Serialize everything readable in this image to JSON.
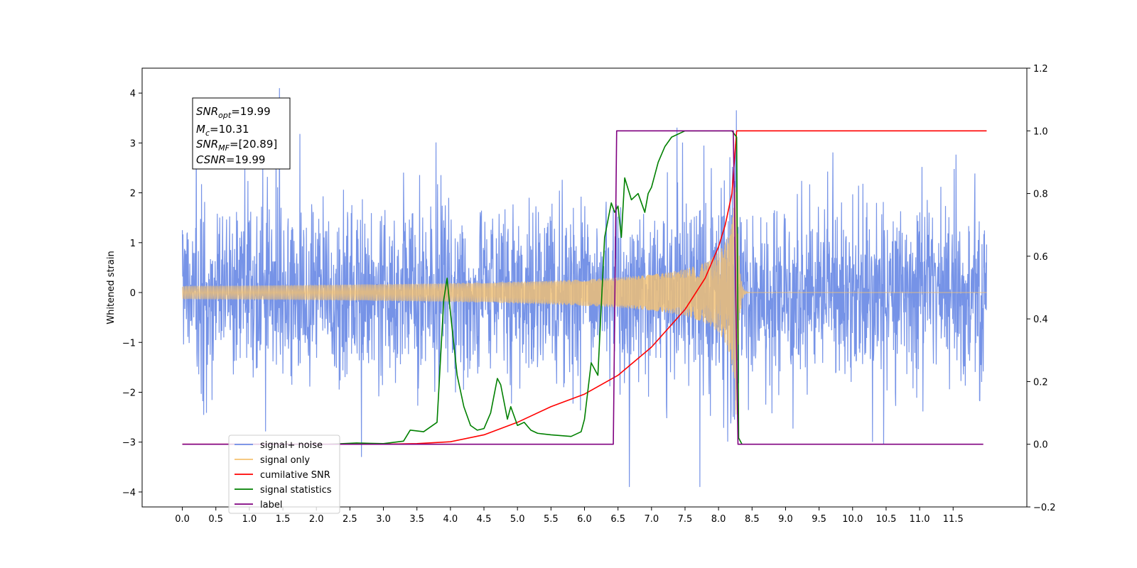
{
  "chart_data": {
    "type": "line",
    "title": "",
    "xlabel": "",
    "ylabel": "Whitened strain",
    "xlim": [
      -0.6,
      12.6
    ],
    "ylim": [
      -4.3,
      4.5
    ],
    "y2lim": [
      -0.2,
      1.2
    ],
    "x_ticks": [
      "0.0",
      "0.5",
      "1.0",
      "1.5",
      "2.0",
      "2.5",
      "3.0",
      "3.5",
      "4.0",
      "4.5",
      "5.0",
      "5.5",
      "6.0",
      "6.5",
      "7.0",
      "7.5",
      "8.0",
      "8.5",
      "9.0",
      "9.5",
      "10.0",
      "10.5",
      "11.0",
      "11.5"
    ],
    "y_ticks": [
      "4",
      "3",
      "2",
      "1",
      "0",
      "−1",
      "−2",
      "−3",
      "−4"
    ],
    "y2_ticks": [
      "1.2",
      "1.0",
      "0.8",
      "0.6",
      "0.4",
      "0.2",
      "0.0",
      "−0.2"
    ],
    "grid": false,
    "legend_position": "lower-left",
    "info_box": {
      "lines": [
        {
          "main": "SNR",
          "sub": "opt",
          "rest": "=19.99"
        },
        {
          "main": "M",
          "sub": "c",
          "rest": "=10.31"
        },
        {
          "main": "SNR",
          "sub": "MF",
          "rest": "=[20.89]"
        },
        {
          "main": "CSNR",
          "sub": "",
          "rest": "=19.99"
        }
      ]
    },
    "series": [
      {
        "name": "signal+ noise",
        "color": "#6f8de6",
        "axis": "left",
        "kind": "noise",
        "x_range": [
          0.0,
          12.0
        ],
        "amplitude": 1.2,
        "seed": 7,
        "merger": 8.27
      },
      {
        "name": "signal only",
        "color": "#f5c271",
        "axis": "left",
        "kind": "chirp",
        "x_range": [
          0.0,
          8.27
        ],
        "peak_amplitude": 2.9,
        "merger": 8.27
      },
      {
        "name": "cumilative SNR",
        "color": "#ff0000",
        "axis": "right",
        "x": [
          0.0,
          3.0,
          3.5,
          4.0,
          4.5,
          5.0,
          5.5,
          6.0,
          6.5,
          7.0,
          7.5,
          7.8,
          8.0,
          8.1,
          8.2,
          8.27,
          8.3,
          12.0
        ],
        "values": [
          0.0,
          0.0,
          0.002,
          0.008,
          0.03,
          0.07,
          0.12,
          0.16,
          0.22,
          0.31,
          0.43,
          0.53,
          0.63,
          0.7,
          0.8,
          1.0,
          1.0,
          1.0
        ]
      },
      {
        "name": "signal statistics",
        "color": "#008000",
        "axis": "right",
        "x": [
          2.2,
          2.6,
          2.8,
          3.0,
          3.3,
          3.4,
          3.6,
          3.8,
          3.9,
          3.95,
          4.0,
          4.1,
          4.2,
          4.3,
          4.4,
          4.5,
          4.6,
          4.7,
          4.75,
          4.85,
          4.9,
          5.0,
          5.1,
          5.2,
          5.3,
          5.5,
          5.8,
          5.95,
          6.0,
          6.1,
          6.2,
          6.3,
          6.4,
          6.45,
          6.5,
          6.55,
          6.6,
          6.7,
          6.8,
          6.9,
          6.95,
          7.0,
          7.1,
          7.2,
          7.3,
          7.5,
          7.8,
          8.0,
          8.1,
          8.2,
          8.27,
          8.3,
          8.35
        ],
        "values": [
          0.0,
          0.004,
          0.003,
          0.002,
          0.01,
          0.045,
          0.04,
          0.07,
          0.46,
          0.53,
          0.42,
          0.22,
          0.12,
          0.06,
          0.045,
          0.05,
          0.1,
          0.21,
          0.19,
          0.08,
          0.12,
          0.06,
          0.07,
          0.045,
          0.035,
          0.03,
          0.025,
          0.04,
          0.08,
          0.26,
          0.22,
          0.66,
          0.77,
          0.74,
          0.76,
          0.66,
          0.85,
          0.78,
          0.8,
          0.74,
          0.8,
          0.82,
          0.9,
          0.95,
          0.98,
          1.0,
          1.0,
          1.0,
          1.0,
          1.0,
          0.98,
          0.02,
          0.0
        ]
      },
      {
        "name": "label",
        "color": "#800080",
        "axis": "right",
        "x": [
          0.0,
          6.43,
          6.48,
          8.22,
          8.29,
          11.95
        ],
        "values": [
          0.0,
          0.0,
          1.0,
          1.0,
          0.0,
          0.0
        ]
      }
    ]
  }
}
